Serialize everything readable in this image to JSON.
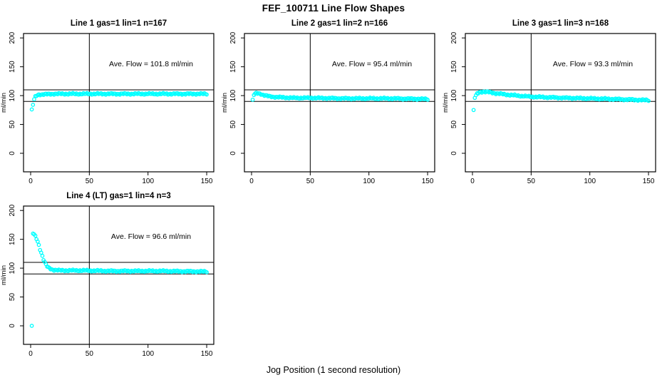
{
  "figure": {
    "title": "FEF_100711  Line Flow Shapes",
    "xlabel": "Jog Position (1 second resolution)",
    "background_color": "#ffffff",
    "point_color": "#00ffff",
    "line_color": "#000000"
  },
  "chart_data": [
    {
      "type": "scatter",
      "title": "Line 1 gas=1 lin=1 n=167",
      "line": 1,
      "gas": 1,
      "lin": 1,
      "n": 167,
      "annotation": "Ave. Flow =  101.8  ml/min",
      "ave_flow_ml_min": 101.8,
      "ylabel": "ml/min",
      "x_ticks": [
        0,
        50,
        100,
        150
      ],
      "y_ticks": [
        0,
        50,
        100,
        150,
        200
      ],
      "xlim": [
        0,
        150
      ],
      "ylim": [
        0,
        200
      ],
      "ref_hlines": [
        90,
        110
      ],
      "ref_vline": 50,
      "grid": false,
      "profile_keypoints": [
        [
          1,
          76
        ],
        [
          2,
          84
        ],
        [
          3,
          93
        ],
        [
          4,
          98
        ],
        [
          5,
          100
        ],
        [
          7,
          102
        ],
        [
          10,
          102
        ],
        [
          20,
          103
        ],
        [
          60,
          103
        ],
        [
          100,
          103
        ],
        [
          150,
          103
        ]
      ]
    },
    {
      "type": "scatter",
      "title": "Line 2 gas=1 lin=2 n=166",
      "line": 2,
      "gas": 1,
      "lin": 2,
      "n": 166,
      "annotation": "Ave. Flow =  95.4  ml/min",
      "ave_flow_ml_min": 95.4,
      "ylabel": "ml/min",
      "x_ticks": [
        0,
        50,
        100,
        150
      ],
      "y_ticks": [
        0,
        50,
        100,
        150,
        200
      ],
      "xlim": [
        0,
        150
      ],
      "ylim": [
        0,
        200
      ],
      "ref_hlines": [
        90,
        110
      ],
      "ref_vline": 50,
      "grid": false,
      "profile_keypoints": [
        [
          1,
          93
        ],
        [
          2,
          101
        ],
        [
          3,
          103
        ],
        [
          4,
          104
        ],
        [
          6,
          104
        ],
        [
          8,
          103
        ],
        [
          10,
          101
        ],
        [
          14,
          99
        ],
        [
          18,
          98
        ],
        [
          25,
          97
        ],
        [
          35,
          96
        ],
        [
          50,
          96
        ],
        [
          80,
          95
        ],
        [
          120,
          95
        ],
        [
          150,
          94
        ]
      ]
    },
    {
      "type": "scatter",
      "title": "Line 3 gas=1 lin=3 n=168",
      "line": 3,
      "gas": 1,
      "lin": 3,
      "n": 168,
      "annotation": "Ave. Flow =  93.3  ml/min",
      "ave_flow_ml_min": 93.3,
      "ylabel": "ml/min",
      "x_ticks": [
        0,
        50,
        100,
        150
      ],
      "y_ticks": [
        0,
        50,
        100,
        150,
        200
      ],
      "xlim": [
        0,
        150
      ],
      "ylim": [
        0,
        200
      ],
      "ref_hlines": [
        90,
        110
      ],
      "ref_vline": 50,
      "grid": false,
      "profile_keypoints": [
        [
          1,
          75
        ],
        [
          2,
          96
        ],
        [
          3,
          100
        ],
        [
          4,
          103
        ],
        [
          6,
          106
        ],
        [
          9,
          107
        ],
        [
          14,
          106
        ],
        [
          20,
          104
        ],
        [
          28,
          102
        ],
        [
          38,
          100
        ],
        [
          50,
          98
        ],
        [
          65,
          97
        ],
        [
          80,
          96
        ],
        [
          100,
          95
        ],
        [
          120,
          94
        ],
        [
          150,
          92
        ]
      ]
    },
    {
      "type": "scatter",
      "title": "Line 4 (LT) gas=1 lin=4 n=3",
      "line": 4,
      "line_note": "LT",
      "gas": 1,
      "lin": 4,
      "n": 3,
      "annotation": "Ave. Flow =  96.6  ml/min",
      "ave_flow_ml_min": 96.6,
      "ylabel": "ml/min",
      "x_ticks": [
        0,
        50,
        100,
        150
      ],
      "y_ticks": [
        0,
        50,
        100,
        150,
        200
      ],
      "xlim": [
        0,
        150
      ],
      "ylim": [
        0,
        200
      ],
      "ref_hlines": [
        90,
        110
      ],
      "ref_vline": 50,
      "grid": false,
      "profile_keypoints": [
        [
          1,
          0
        ],
        [
          2,
          160
        ],
        [
          3,
          158
        ],
        [
          4,
          155
        ],
        [
          5,
          151
        ],
        [
          6,
          146
        ],
        [
          7,
          140
        ],
        [
          8,
          133
        ],
        [
          9,
          127
        ],
        [
          10,
          121
        ],
        [
          11,
          115
        ],
        [
          12,
          110
        ],
        [
          13,
          106
        ],
        [
          14,
          103
        ],
        [
          15,
          101
        ],
        [
          16,
          100
        ],
        [
          17,
          99
        ],
        [
          18,
          98
        ],
        [
          20,
          97
        ],
        [
          25,
          96
        ],
        [
          40,
          96
        ],
        [
          70,
          95
        ],
        [
          110,
          95
        ],
        [
          150,
          94
        ]
      ]
    }
  ]
}
